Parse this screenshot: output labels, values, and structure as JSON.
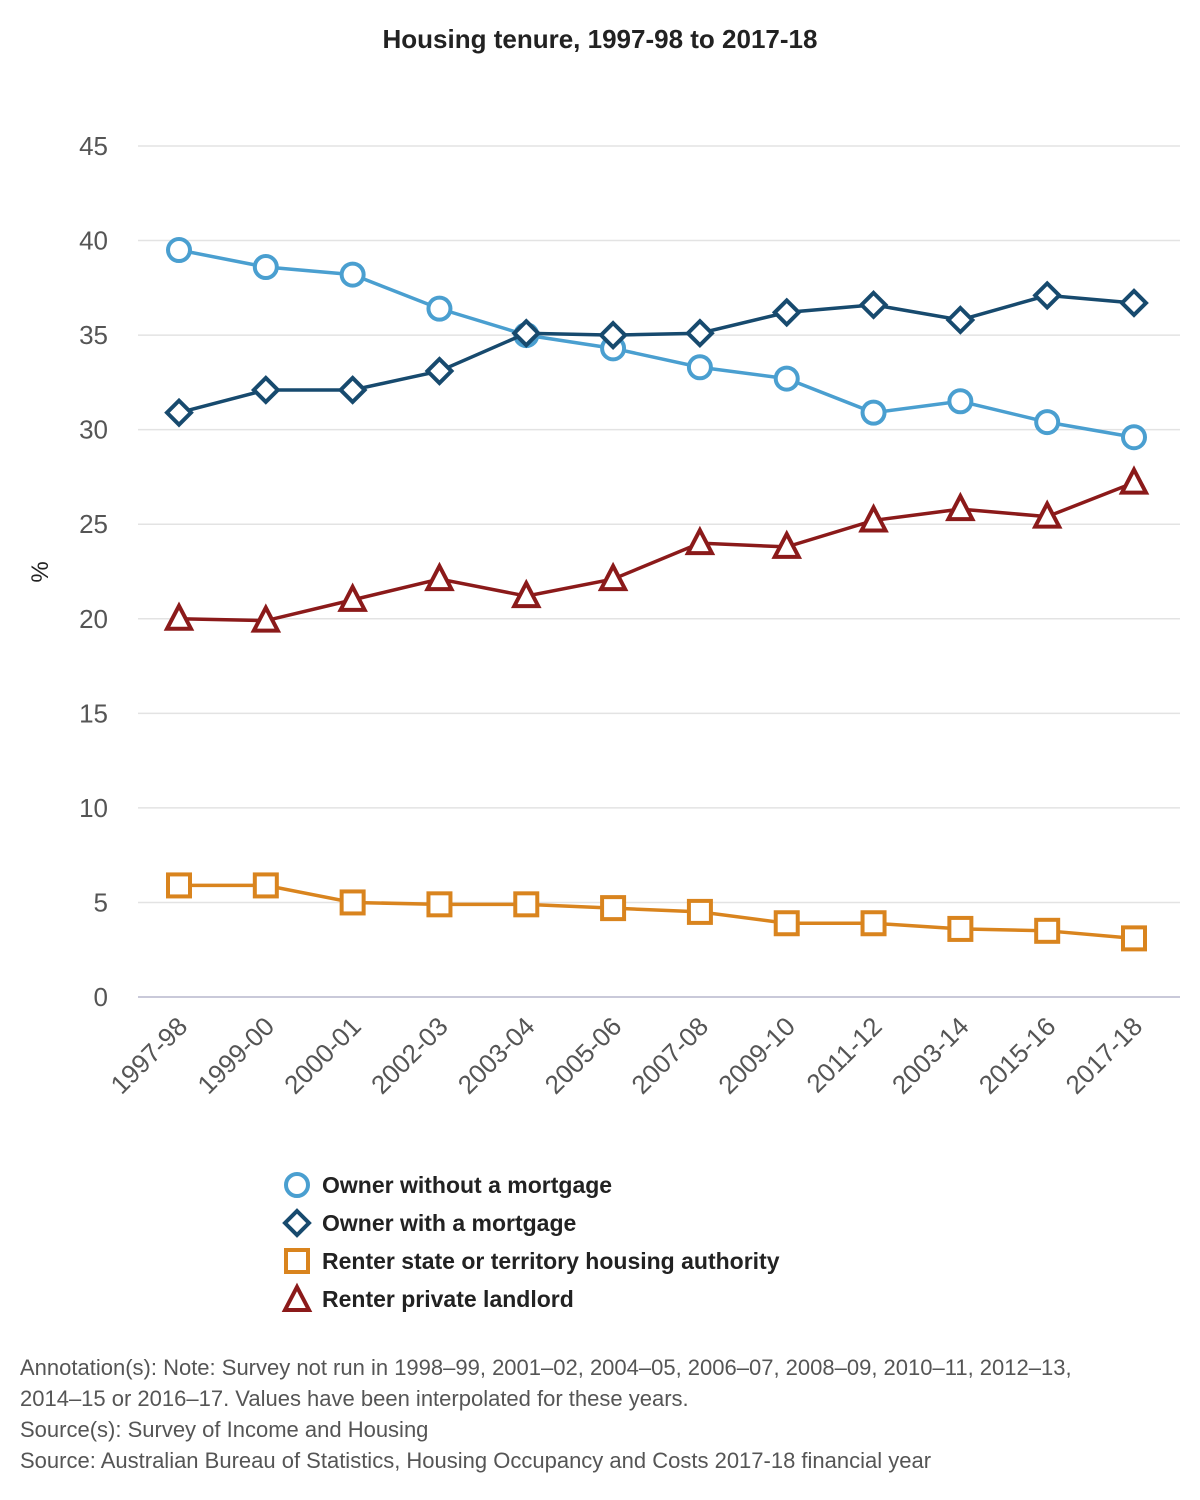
{
  "chart_data": {
    "type": "line",
    "title": "Housing tenure, 1997-98 to 2017-18",
    "ylabel": "%",
    "xlabel": "",
    "ylim": [
      0,
      45
    ],
    "yticks": [
      0,
      5,
      10,
      15,
      20,
      25,
      30,
      35,
      40,
      45
    ],
    "grid": true,
    "legend_position": "bottom",
    "categories": [
      "1997-98",
      "1999-00",
      "2000-01",
      "2002-03",
      "2003-04",
      "2005-06",
      "2007-08",
      "2009-10",
      "2011-12",
      "2003-14",
      "2015-16",
      "2017-18"
    ],
    "series": [
      {
        "name": "Owner without a mortgage",
        "marker": "circle",
        "color": "#4a9fd0",
        "values": [
          39.5,
          38.6,
          38.2,
          36.4,
          35.0,
          34.3,
          33.3,
          32.7,
          30.9,
          31.5,
          30.4,
          29.6
        ]
      },
      {
        "name": "Owner with a mortgage",
        "marker": "diamond",
        "color": "#174a6e",
        "values": [
          30.9,
          32.1,
          32.1,
          33.1,
          35.1,
          35.0,
          35.1,
          36.2,
          36.6,
          35.8,
          37.1,
          36.7
        ]
      },
      {
        "name": "Renter state or territory housing authority",
        "marker": "square",
        "color": "#d9841e",
        "values": [
          5.9,
          5.9,
          5.0,
          4.9,
          4.9,
          4.7,
          4.5,
          3.9,
          3.9,
          3.6,
          3.5,
          3.1
        ]
      },
      {
        "name": "Renter private landlord",
        "marker": "triangle",
        "color": "#8b1a1a",
        "values": [
          20.0,
          19.9,
          21.0,
          22.1,
          21.2,
          22.1,
          24.0,
          23.8,
          25.2,
          25.8,
          25.4,
          27.2
        ]
      }
    ]
  },
  "footnotes": {
    "annotation_line1": "Annotation(s): Note: Survey not run in 1998–99, 2001–02, 2004–05, 2006–07, 2008–09, 2010–11, 2012–13,",
    "annotation_line2": "2014–15 or 2016–17. Values have been interpolated for these years.",
    "source1": "Source(s): Survey of Income and Housing",
    "source2": "Source: Australian Bureau of Statistics, Housing Occupancy and Costs 2017-18 financial year"
  }
}
